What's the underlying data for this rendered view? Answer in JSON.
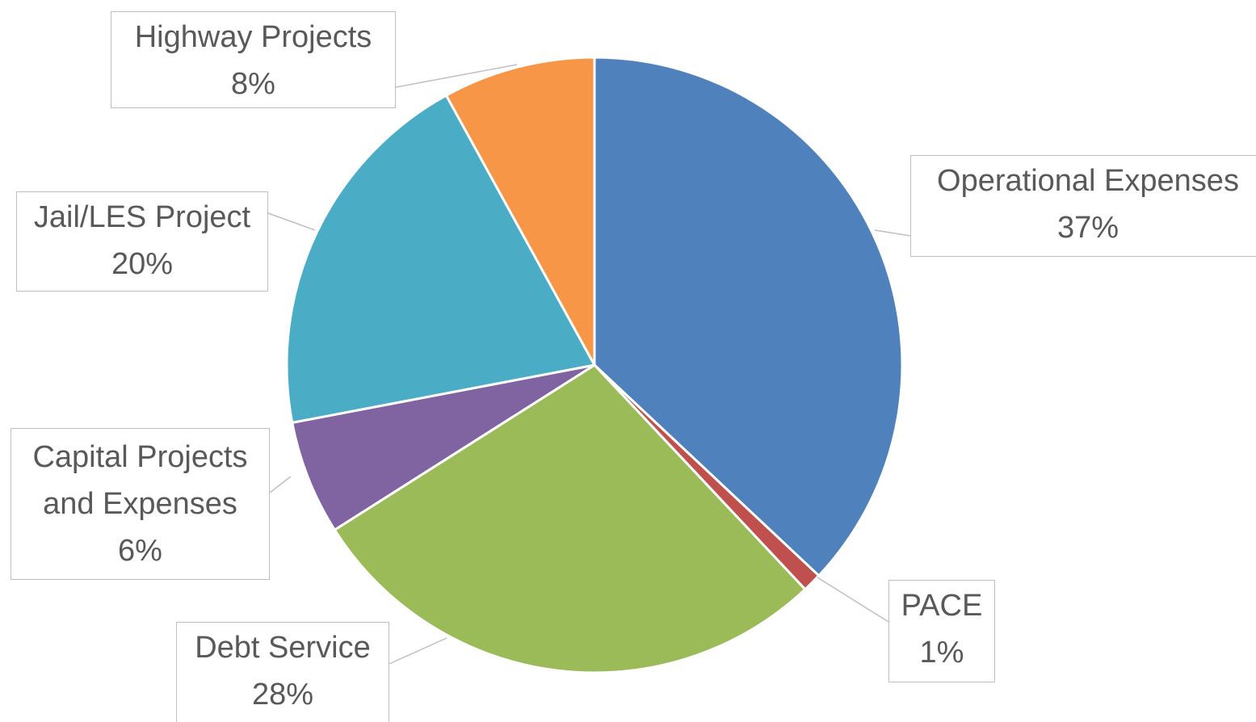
{
  "chart_data": {
    "type": "pie",
    "categories": [
      "Operational Expenses",
      "PACE",
      "Debt Service",
      "Capital Projects and Expenses",
      "Jail/LES Project",
      "Highway Projects"
    ],
    "values": [
      37,
      1,
      28,
      6,
      20,
      8
    ],
    "value_labels": [
      "37%",
      "1%",
      "28%",
      "6%",
      "20%",
      "8%"
    ],
    "colors": [
      "#4f81bd",
      "#c0504d",
      "#9bbb59",
      "#8064a2",
      "#4bacc6",
      "#f79646"
    ]
  }
}
